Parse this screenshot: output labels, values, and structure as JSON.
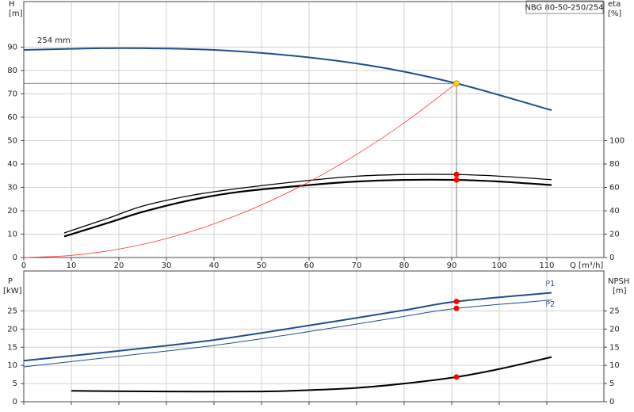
{
  "chart_data": [
    {
      "type": "line",
      "title": "NBG 80-50-250/254",
      "xlabel": "Q [m³/h]",
      "ylabel": "H",
      "yunit": "[m]",
      "y2label": "eta",
      "y2unit": "[%]",
      "xlim": [
        0,
        122
      ],
      "xticks": [
        0,
        10,
        20,
        30,
        40,
        50,
        60,
        70,
        80,
        90,
        100,
        110
      ],
      "ylim": [
        0,
        109.5
      ],
      "yticks": [
        0,
        10,
        20,
        30,
        40,
        50,
        60,
        70,
        80,
        90
      ],
      "y2lim": [
        0,
        219
      ],
      "y2ticks": [
        0,
        20,
        40,
        60,
        80,
        100
      ],
      "grid": true,
      "show_xtick_labels": true,
      "series": [
        {
          "name": "254 mm",
          "color": "#1f4e8c",
          "width": 2,
          "x": [
            0,
            10,
            20,
            30,
            40,
            50,
            60,
            70,
            80,
            91,
            100,
            111
          ],
          "values": [
            88.8,
            89.3,
            89.6,
            89.4,
            88.8,
            87.5,
            85.6,
            83,
            79.5,
            74.5,
            69.5,
            63
          ]
        },
        {
          "color": "#000000",
          "width": 1.3,
          "axis": "y2",
          "x": [
            8.5,
            18,
            25,
            35,
            45,
            60,
            70,
            80,
            91,
            100,
            111
          ],
          "values": [
            21,
            34,
            44,
            53,
            59,
            66,
            69.6,
            71,
            71,
            69.6,
            66.6
          ]
        },
        {
          "color": "#000000",
          "width": 2.2,
          "axis": "y2",
          "x": [
            8.5,
            18,
            25,
            35,
            45,
            60,
            70,
            80,
            91,
            100,
            111
          ],
          "values": [
            18,
            30,
            39,
            49,
            56,
            62,
            65,
            66.4,
            66.4,
            65,
            62
          ]
        },
        {
          "color": "#ff3030",
          "width": 0.8,
          "x": [
            0,
            10,
            20,
            30,
            40,
            50,
            60,
            70,
            80,
            91
          ],
          "values": [
            0,
            0.9,
            3.6,
            8.1,
            14.4,
            22.5,
            32.4,
            44.1,
            57.6,
            74.5
          ]
        }
      ],
      "points": [
        {
          "x": 91,
          "y": 74.5,
          "color": "#ffd700",
          "guides": true
        },
        {
          "x": 91,
          "y": 71,
          "axis": "y2",
          "color": "#ff0000"
        },
        {
          "x": 91,
          "y": 66.4,
          "axis": "y2",
          "color": "#ff0000"
        }
      ]
    },
    {
      "type": "line",
      "ylabel": "P",
      "yunit": "[kW]",
      "y2label": "NPSH",
      "y2unit": "[m]",
      "xlim": [
        0,
        122
      ],
      "xticks": [
        0,
        10,
        20,
        30,
        40,
        50,
        60,
        70,
        80,
        90,
        100,
        110
      ],
      "ylim": [
        0,
        36
      ],
      "yticks": [
        0,
        5,
        10,
        15,
        20,
        25
      ],
      "y2lim": [
        0,
        36
      ],
      "y2ticks": [
        0,
        5,
        10,
        15,
        20,
        25
      ],
      "grid": true,
      "show_xtick_labels": false,
      "series": [
        {
          "name": "P1",
          "color": "#1f4e8c",
          "width": 2,
          "x": [
            0,
            20,
            40,
            60,
            80,
            91,
            111
          ],
          "values": [
            11.3,
            14,
            17,
            21,
            25.2,
            27.6,
            30
          ]
        },
        {
          "name": "P2",
          "color": "#1f4e8c",
          "width": 1,
          "x": [
            0,
            20,
            40,
            60,
            80,
            91,
            111
          ],
          "values": [
            9.6,
            12.5,
            15.5,
            19.3,
            23.5,
            25.7,
            28
          ]
        },
        {
          "color": "#000000",
          "width": 2,
          "axis": "y2",
          "x": [
            10,
            30,
            50,
            60,
            70,
            80,
            91,
            100,
            111
          ],
          "values": [
            3,
            2.8,
            2.8,
            3.2,
            3.8,
            5,
            6.8,
            9,
            12.3
          ]
        }
      ],
      "points": [
        {
          "x": 91,
          "y": 27.6,
          "color": "#ff0000"
        },
        {
          "x": 91,
          "y": 25.7,
          "color": "#ff0000"
        },
        {
          "x": 91,
          "y": 6.8,
          "axis": "y2",
          "color": "#ff0000"
        }
      ]
    }
  ]
}
